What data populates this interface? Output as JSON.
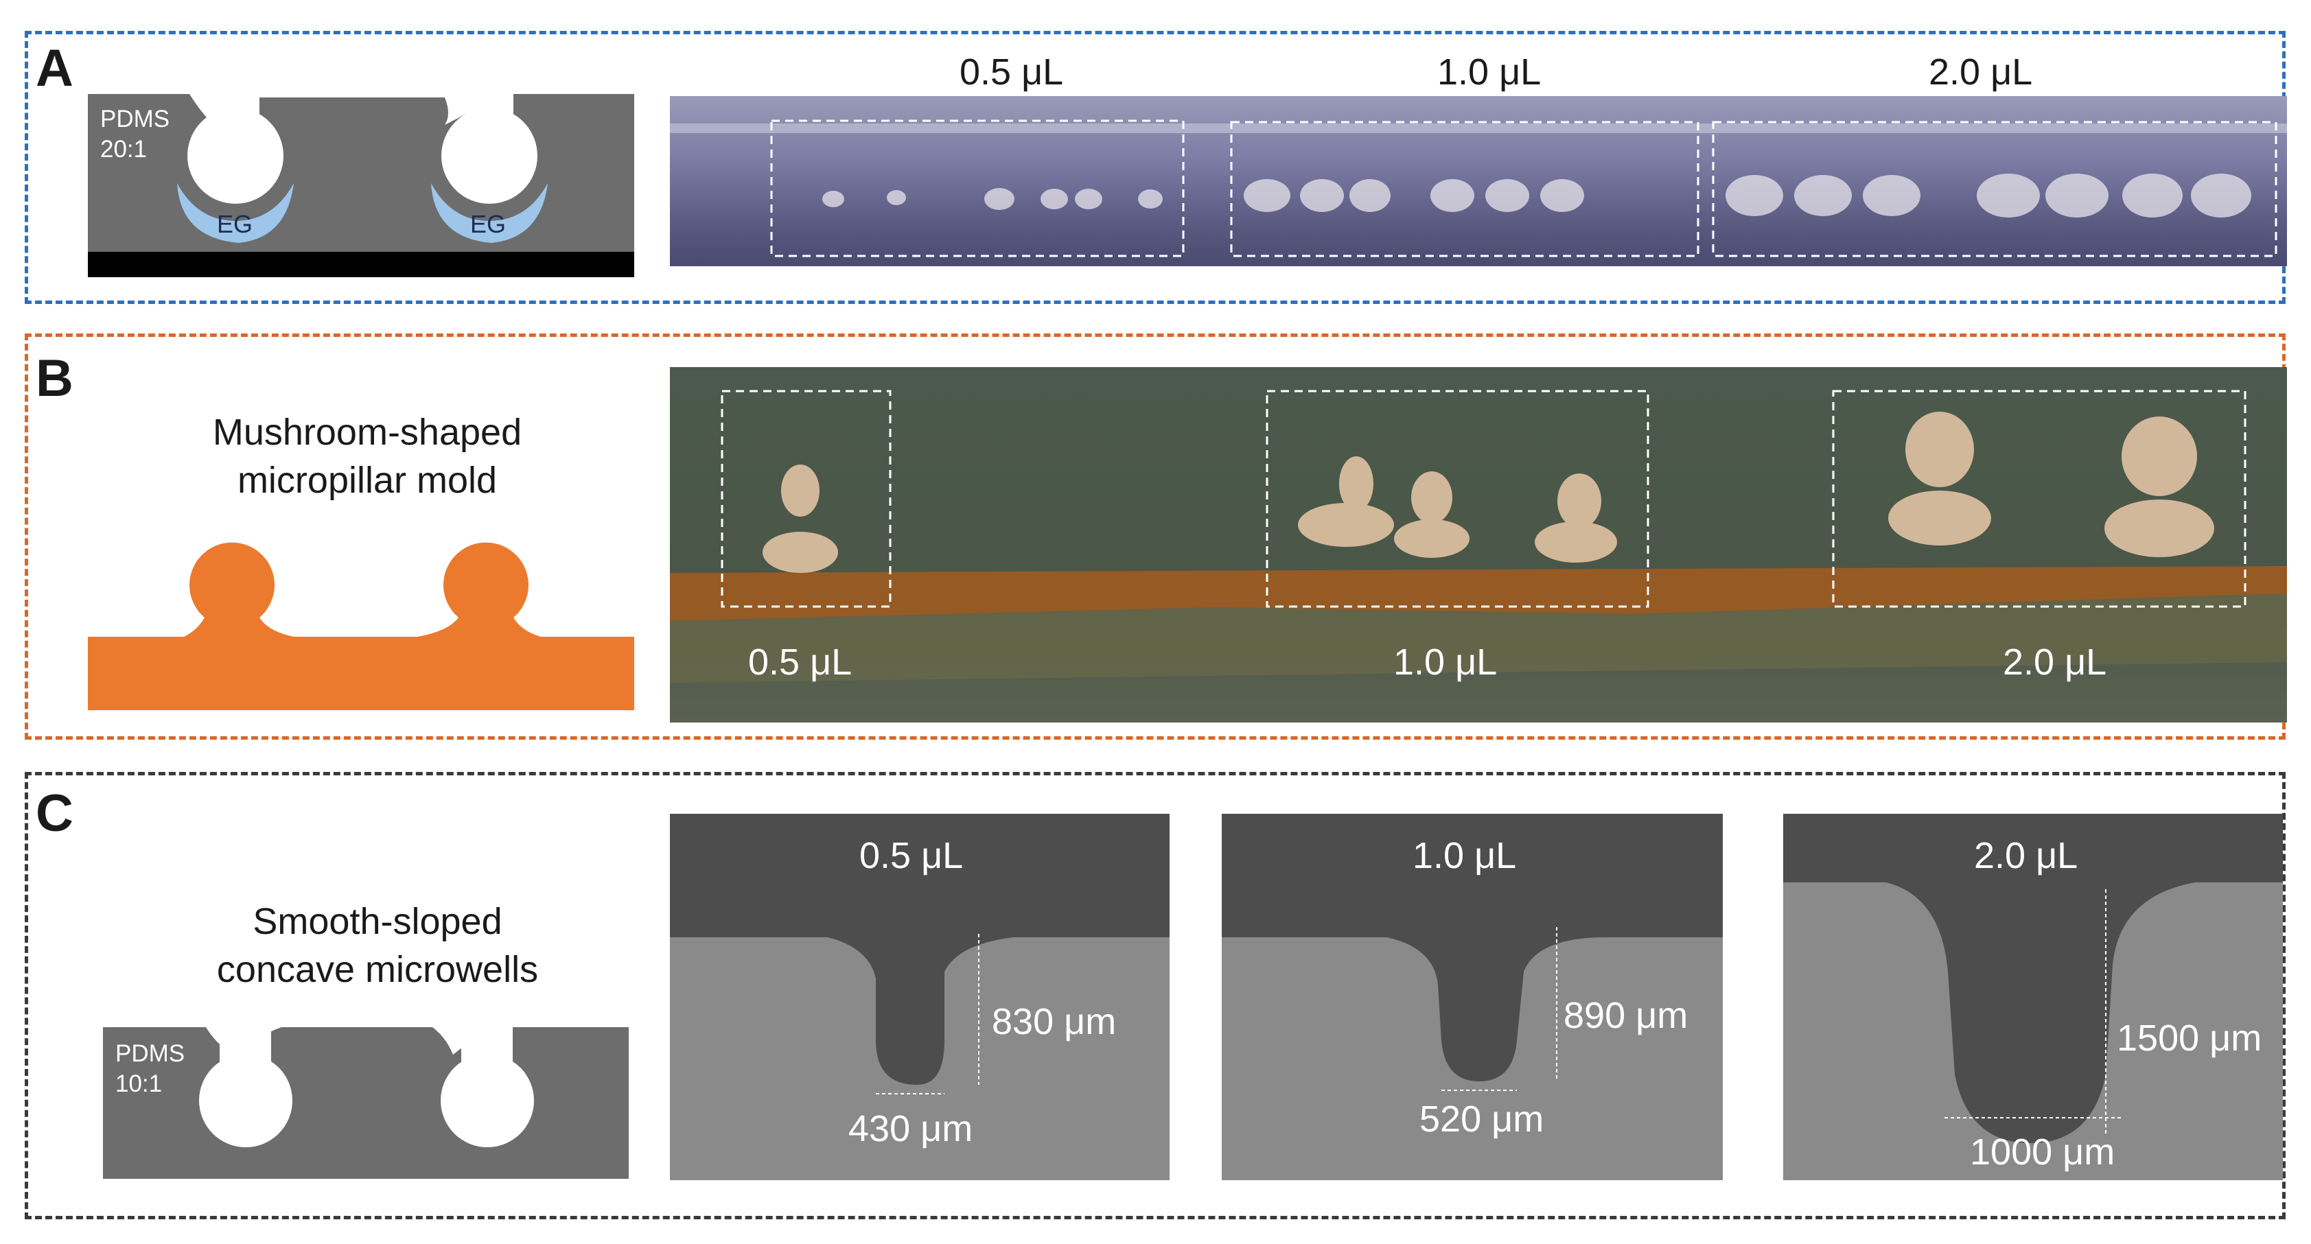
{
  "panels": {
    "A": {
      "label": "A",
      "diagram": {
        "material": "PDMS",
        "ratio": "20:1",
        "liquid_left": "EG",
        "liquid_right": "EG"
      },
      "volumes": [
        "0.5 μL",
        "1.0 μL",
        "2.0 μL"
      ]
    },
    "B": {
      "label": "B",
      "caption_line1": "Mushroom-shaped",
      "caption_line2": "micropillar mold",
      "volumes": [
        "0.5 μL",
        "1.0 μL",
        "2.0 μL"
      ]
    },
    "C": {
      "label": "C",
      "caption_line1": "Smooth-sloped",
      "caption_line2": "concave microwells",
      "diagram": {
        "material": "PDMS",
        "ratio": "10:1"
      },
      "images": [
        {
          "volume": "0.5 μL",
          "depth": "830 μm",
          "width": "430 μm"
        },
        {
          "volume": "1.0 μL",
          "depth": "890 μm",
          "width": "520 μm"
        },
        {
          "volume": "2.0 μL",
          "depth": "1500 μm",
          "width": "1000 μm"
        }
      ]
    }
  },
  "colors": {
    "panel_a_border": "#2f6fbd",
    "panel_b_border": "#d8682a",
    "panel_c_border": "#3a3a3a",
    "pdms_gray": "#6d6d6d",
    "eg_blue": "#9ec5ea",
    "mold_orange": "#ec7a2e"
  }
}
